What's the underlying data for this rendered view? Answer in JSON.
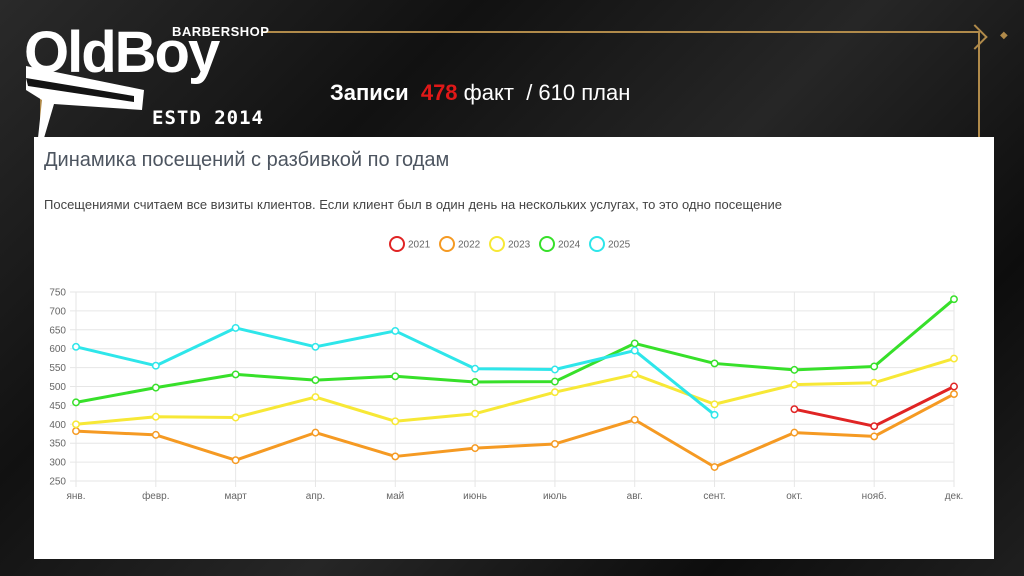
{
  "brand": {
    "name": "OldBoy",
    "sub": "BARBERSHOP",
    "estd": "ESTD 2014"
  },
  "header": {
    "label": "Записи",
    "fact_value": "478",
    "fact_word": "факт",
    "plan_text": "/ 610 план"
  },
  "colors": {
    "2021": "#e02424",
    "2022": "#f59a23",
    "2023": "#f7e836",
    "2024": "#37e02a",
    "2025": "#2ee6ea"
  },
  "chart_data": {
    "type": "line",
    "title": "Динамика посещений с разбивкой по годам",
    "subtitle": "Посещениями считаем все визиты клиентов. Если клиент был в один день на нескольких услугах, то это одно посещение",
    "categories": [
      "янв.",
      "февр.",
      "март",
      "апр.",
      "май",
      "июнь",
      "июль",
      "авг.",
      "сент.",
      "окт.",
      "нояб.",
      "дек."
    ],
    "ylim": [
      250,
      750
    ],
    "yticks": [
      250,
      300,
      350,
      400,
      450,
      500,
      550,
      600,
      650,
      700,
      750
    ],
    "grid": true,
    "legend_position": "top-center",
    "series": [
      {
        "name": "2021",
        "values": [
          null,
          null,
          null,
          null,
          null,
          null,
          null,
          null,
          null,
          440,
          395,
          500
        ]
      },
      {
        "name": "2022",
        "values": [
          382,
          372,
          305,
          378,
          315,
          337,
          348,
          412,
          287,
          378,
          368,
          480
        ]
      },
      {
        "name": "2023",
        "values": [
          400,
          420,
          418,
          472,
          408,
          428,
          485,
          532,
          453,
          505,
          510,
          574
        ]
      },
      {
        "name": "2024",
        "values": [
          458,
          497,
          532,
          517,
          527,
          512,
          513,
          614,
          561,
          544,
          553,
          731
        ]
      },
      {
        "name": "2025",
        "values": [
          605,
          555,
          655,
          605,
          647,
          547,
          545,
          595,
          425,
          null,
          null,
          null
        ]
      }
    ]
  }
}
